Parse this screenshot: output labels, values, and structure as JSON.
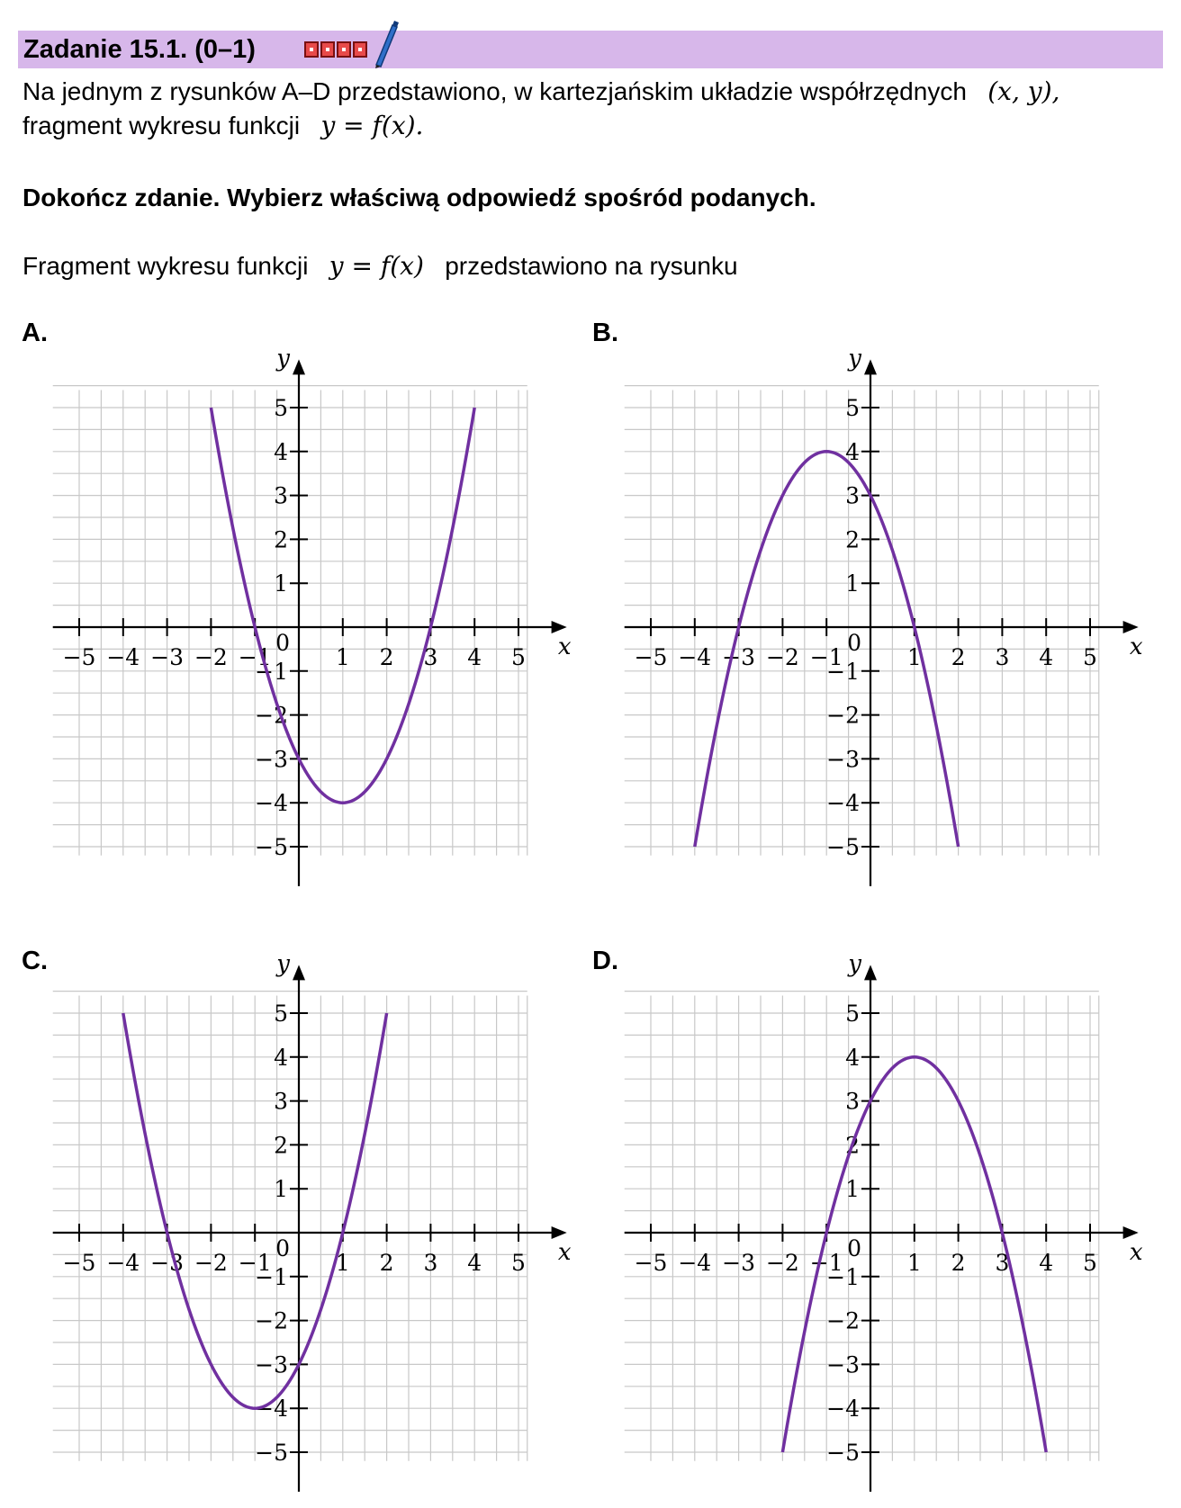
{
  "header": {
    "title": "Zadanie 15.1. (0–1)",
    "marks_count": 4,
    "bg_color": "#d7b7ea",
    "icons": [
      "checkbox-marks-icon",
      "pen-icon"
    ]
  },
  "intro": {
    "line1_text": "Na jednym z rysunków A–D przedstawiono, w kartezjańskim układzie współrzędnych",
    "line1_math": "(x, y),",
    "line2_text": "fragment wykresu funkcji",
    "line2_math": "y = f(x)."
  },
  "instruction": "Dokończ zdanie. Wybierz właściwą odpowiedź spośród podanych.",
  "question": {
    "text_before": "Fragment wykresu funkcji",
    "math": "y = f(x)",
    "text_after": "przedstawiono na rysunku"
  },
  "chart_data": [
    {
      "type": "line",
      "option_label": "A.",
      "function": "y = (x - 1)^2 - 4",
      "x": [
        -2,
        -1,
        0,
        1,
        2,
        3,
        4
      ],
      "y": [
        5,
        0,
        -3,
        -4,
        -3,
        0,
        5
      ],
      "xlim": [
        -5,
        5
      ],
      "ylim": [
        -5,
        5
      ],
      "xlabel": "x",
      "ylabel": "y",
      "x_ticks": [
        "−5",
        "−4",
        "−3",
        "−2",
        "−1",
        "1",
        "2",
        "3",
        "4",
        "5"
      ],
      "y_ticks": [
        "5",
        "4",
        "3",
        "2",
        "1",
        "−1",
        "−2",
        "−3",
        "−4",
        "−5"
      ],
      "origin_label": "0",
      "grid": true,
      "color": "#7030a0"
    },
    {
      "type": "line",
      "option_label": "B.",
      "function": "y = -(x + 1)^2 + 4",
      "x": [
        -4,
        -3,
        -2,
        -1,
        0,
        1,
        2
      ],
      "y": [
        -5,
        0,
        3,
        4,
        3,
        0,
        -5
      ],
      "xlim": [
        -5,
        5
      ],
      "ylim": [
        -5,
        5
      ],
      "xlabel": "x",
      "ylabel": "y",
      "x_ticks": [
        "−5",
        "−4",
        "−3",
        "−2",
        "−1",
        "1",
        "2",
        "3",
        "4",
        "5"
      ],
      "y_ticks": [
        "5",
        "4",
        "3",
        "2",
        "1",
        "−1",
        "−2",
        "−3",
        "−4",
        "−5"
      ],
      "origin_label": "0",
      "grid": true,
      "color": "#7030a0"
    },
    {
      "type": "line",
      "option_label": "C.",
      "function": "y = (x + 1)^2 - 4",
      "x": [
        -4,
        -3,
        -2,
        -1,
        0,
        1,
        2
      ],
      "y": [
        5,
        0,
        -3,
        -4,
        -3,
        0,
        5
      ],
      "xlim": [
        -5,
        5
      ],
      "ylim": [
        -5,
        5
      ],
      "xlabel": "x",
      "ylabel": "y",
      "x_ticks": [
        "−5",
        "−4",
        "−3",
        "−2",
        "−1",
        "1",
        "2",
        "3",
        "4",
        "5"
      ],
      "y_ticks": [
        "5",
        "4",
        "3",
        "2",
        "1",
        "−1",
        "−2",
        "−3",
        "−4",
        "−5"
      ],
      "origin_label": "0",
      "grid": true,
      "color": "#7030a0"
    },
    {
      "type": "line",
      "option_label": "D.",
      "function": "y = -(x - 1)^2 + 4",
      "x": [
        -2,
        -1,
        0,
        1,
        2,
        3,
        4
      ],
      "y": [
        -5,
        0,
        3,
        4,
        3,
        0,
        -5
      ],
      "xlim": [
        -5,
        5
      ],
      "ylim": [
        -5,
        5
      ],
      "xlabel": "x",
      "ylabel": "y",
      "x_ticks": [
        "−5",
        "−4",
        "−3",
        "−2",
        "−1",
        "1",
        "2",
        "3",
        "4",
        "5"
      ],
      "y_ticks": [
        "5",
        "4",
        "3",
        "2",
        "1",
        "−1",
        "−2",
        "−3",
        "−4",
        "−5"
      ],
      "origin_label": "0",
      "grid": true,
      "color": "#7030a0"
    }
  ]
}
